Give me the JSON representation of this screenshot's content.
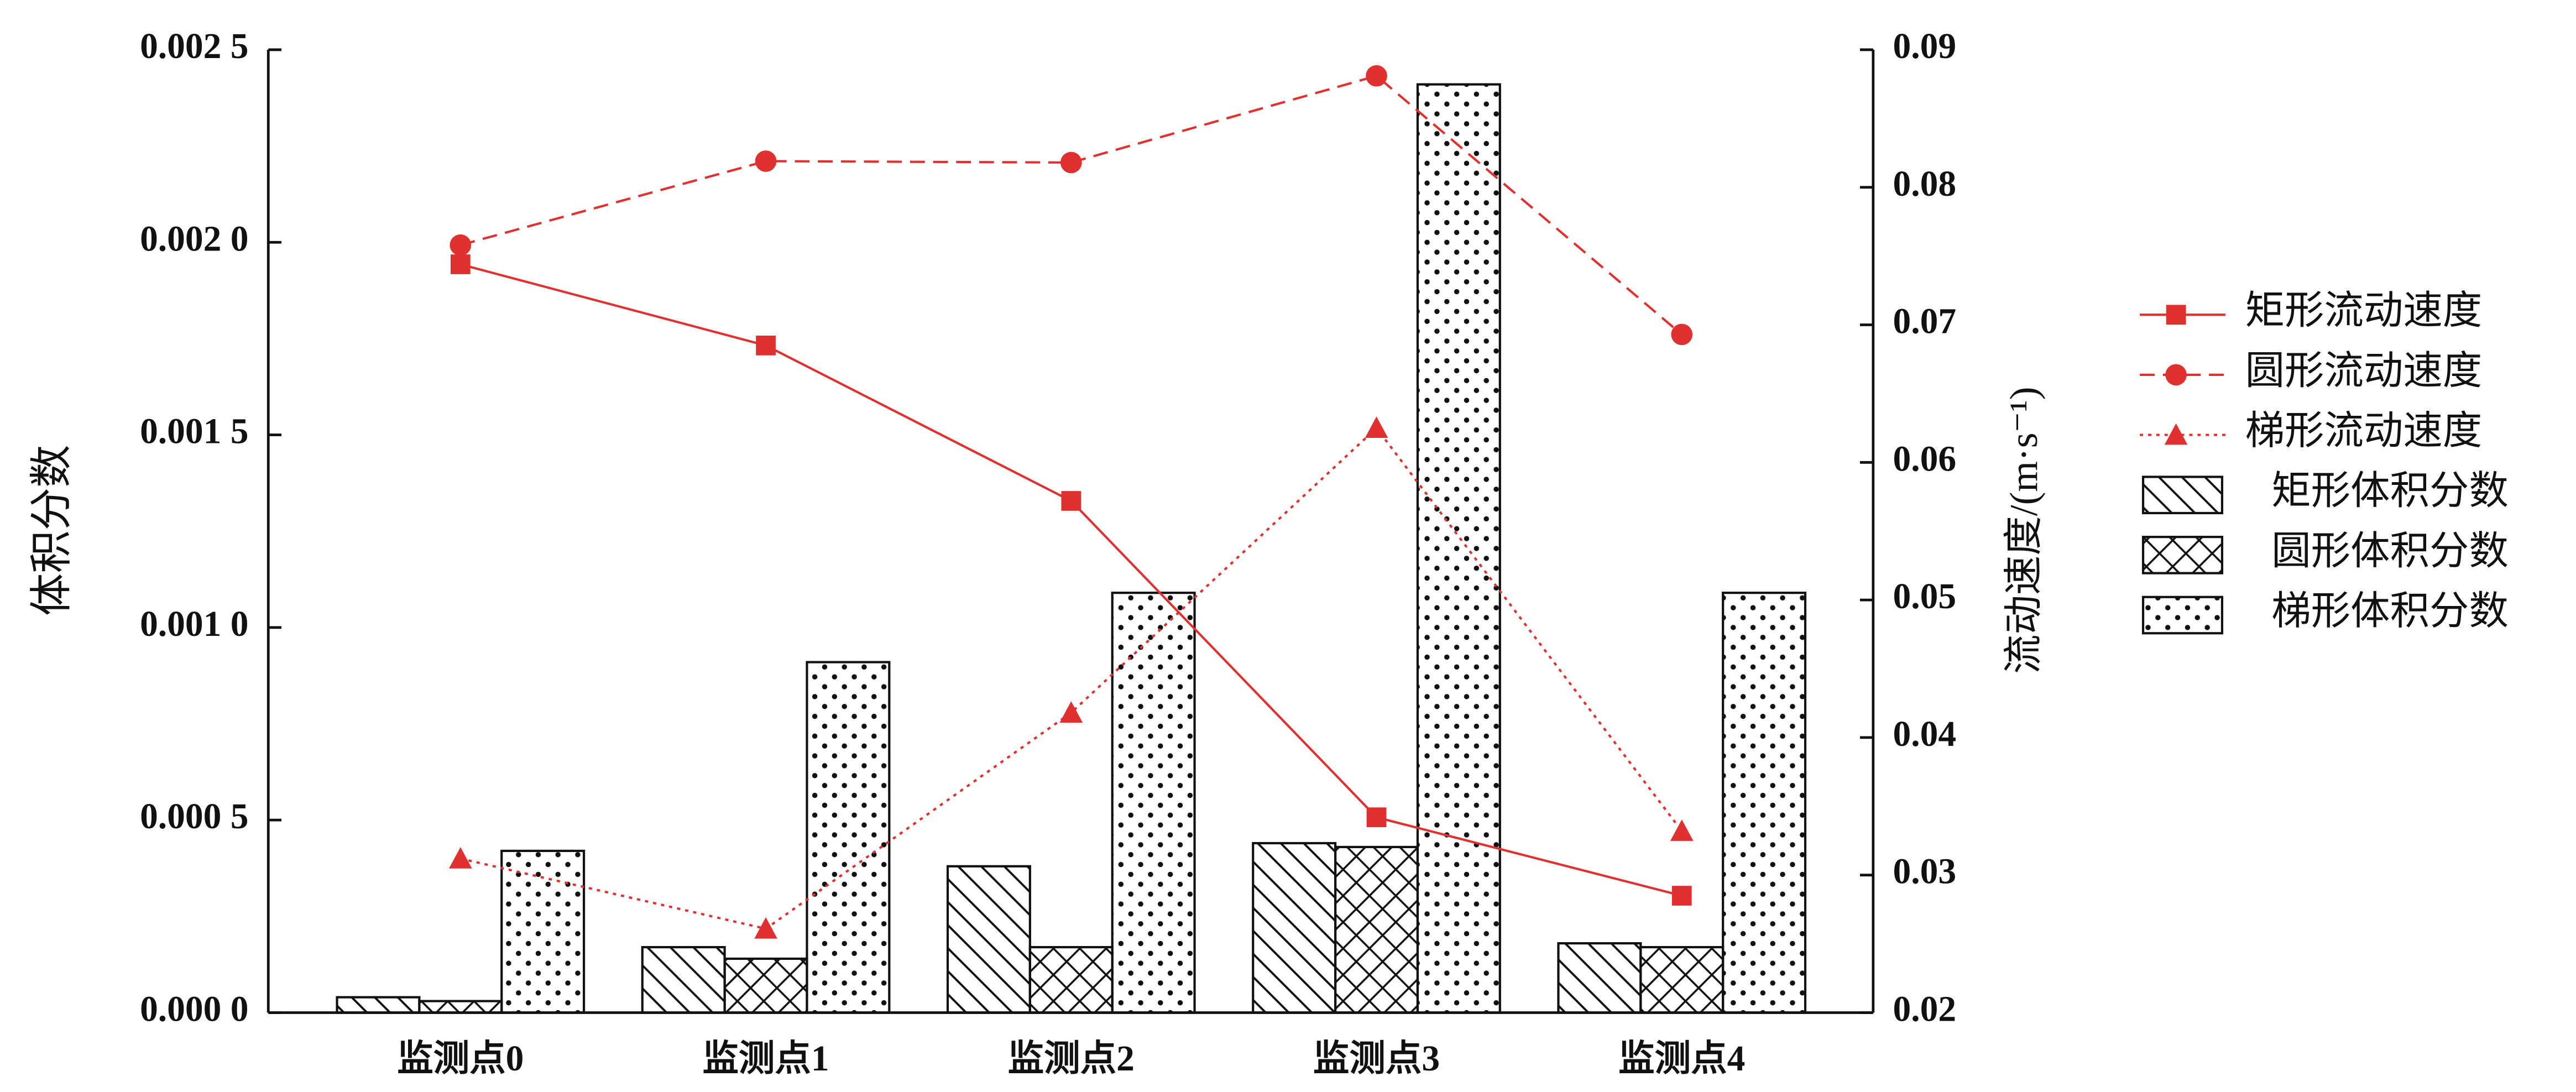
{
  "chart_data": {
    "type": "bar",
    "categories": [
      "监测点0",
      "监测点1",
      "监测点2",
      "监测点3",
      "监测点4"
    ],
    "y_label": "体积分数",
    "y2_label": "流动速度/(m·s⁻¹)",
    "ylim": [
      0,
      0.0025
    ],
    "yticks": [
      {
        "value": 0,
        "label": "0.000 0"
      },
      {
        "value": 0.0005,
        "label": "0.000 5"
      },
      {
        "value": 0.001,
        "label": "0.001 0"
      },
      {
        "value": 0.0015,
        "label": "0.001 5"
      },
      {
        "value": 0.002,
        "label": "0.002 0"
      },
      {
        "value": 0.0025,
        "label": "0.002 5"
      }
    ],
    "y2lim": [
      0.02,
      0.09
    ],
    "y2ticks": [
      0.02,
      0.03,
      0.04,
      0.05,
      0.06,
      0.07,
      0.08,
      0.09
    ],
    "series": [
      {
        "name": "矩形流动速度",
        "kind": "line",
        "axis": "y2",
        "color": "#e03131",
        "dash": "solid",
        "marker": "square",
        "values": [
          0.0744,
          0.0685,
          0.0572,
          0.0342,
          0.0285
        ]
      },
      {
        "name": "圆形流动速度",
        "kind": "line",
        "axis": "y2",
        "color": "#e03131",
        "dash": "dashed",
        "marker": "circle",
        "values": [
          0.0758,
          0.0819,
          0.0818,
          0.0881,
          0.0693
        ]
      },
      {
        "name": "梯形流动速度",
        "kind": "line",
        "axis": "y2",
        "color": "#e03131",
        "dash": "dotted",
        "marker": "triangle",
        "values": [
          0.0312,
          0.0261,
          0.0418,
          0.0625,
          0.0332
        ]
      },
      {
        "name": "矩形体积分数",
        "kind": "bar",
        "color": "#111111",
        "pattern": "hatch",
        "values": [
          4e-05,
          0.00017,
          0.00038,
          0.00044,
          0.00018
        ]
      },
      {
        "name": "圆形体积分数",
        "kind": "bar",
        "color": "#111111",
        "pattern": "crosshatch",
        "values": [
          3e-05,
          0.00014,
          0.00017,
          0.00043,
          0.00017
        ]
      },
      {
        "name": "梯形体积分数",
        "kind": "bar",
        "color": "#111111",
        "pattern": "dots",
        "values": [
          0.00042,
          0.00091,
          0.00109,
          0.00241,
          0.00109
        ]
      }
    ]
  }
}
